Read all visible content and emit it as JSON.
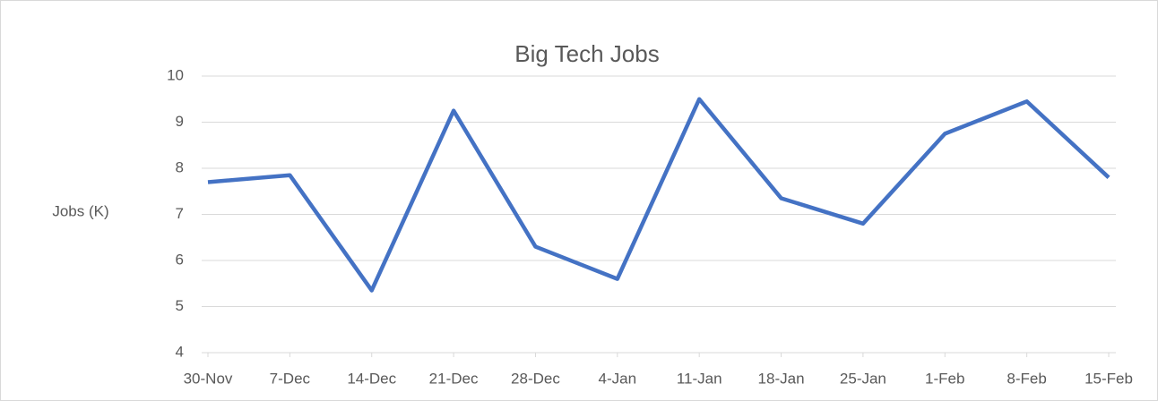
{
  "chart_data": {
    "type": "line",
    "title": "Big Tech Jobs",
    "y_label": "Jobs (K)",
    "categories": [
      "30-Nov",
      "7-Dec",
      "14-Dec",
      "21-Dec",
      "28-Dec",
      "4-Jan",
      "11-Jan",
      "18-Jan",
      "25-Jan",
      "1-Feb",
      "8-Feb",
      "15-Feb"
    ],
    "series": [
      {
        "name": "Jobs",
        "color": "#4472c4",
        "values": [
          7.7,
          7.85,
          5.35,
          9.25,
          6.3,
          5.6,
          9.5,
          7.35,
          6.8,
          8.75,
          9.45,
          7.8
        ]
      }
    ],
    "ylim": [
      4,
      10
    ],
    "yticks": [
      4,
      5,
      6,
      7,
      8,
      9,
      10
    ],
    "grid": true
  }
}
